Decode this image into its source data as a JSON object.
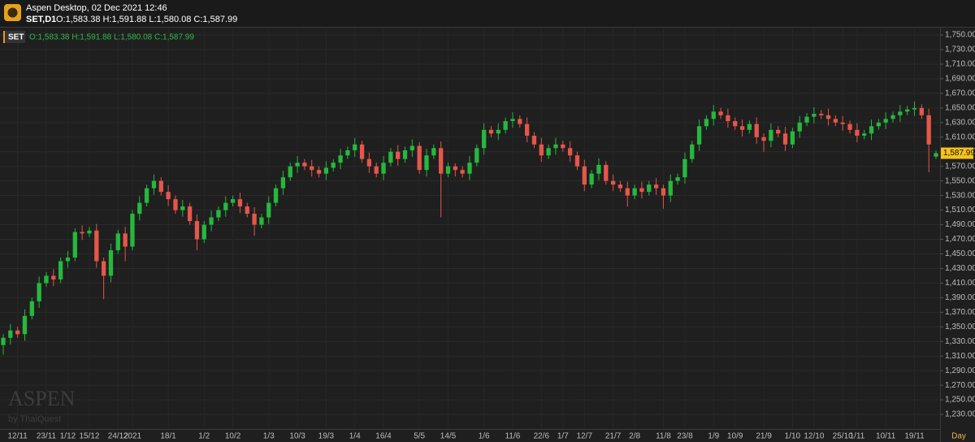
{
  "chart_data": {
    "type": "candlestick",
    "title": "Aspen Desktop, 02 Dec 2021 12:46",
    "symbol": "SET,D1",
    "ohlc_text": "O:1,583.38 H:1,591.88 L:1,580.08 C:1,587.99",
    "legend_name": "SET",
    "legend_text": "O:1,583.38 H:1,591.88 L:1,580.08 C:1,587.99",
    "last_price": {
      "value": 1587.99,
      "label": "1,587.99"
    },
    "x_unit": "Day",
    "watermark": "ASPEN",
    "watermark_sub": "by ThaiQuest",
    "up_color": "#26b83e",
    "down_color": "#e5564b",
    "grid": true,
    "ylim": [
      1210,
      1759
    ],
    "yticks": [
      {
        "value": 1230,
        "label": "1,230.00"
      },
      {
        "value": 1250,
        "label": "1,250.00"
      },
      {
        "value": 1270,
        "label": "1,270.00"
      },
      {
        "value": 1290,
        "label": "1,290.00"
      },
      {
        "value": 1310,
        "label": "1,310.00"
      },
      {
        "value": 1330,
        "label": "1,330.00"
      },
      {
        "value": 1350,
        "label": "1,350.00"
      },
      {
        "value": 1370,
        "label": "1,370.00"
      },
      {
        "value": 1390,
        "label": "1,390.00"
      },
      {
        "value": 1410,
        "label": "1,410.00"
      },
      {
        "value": 1430,
        "label": "1,430.00"
      },
      {
        "value": 1450,
        "label": "1,450.00"
      },
      {
        "value": 1470,
        "label": "1,470.00"
      },
      {
        "value": 1490,
        "label": "1,490.00"
      },
      {
        "value": 1510,
        "label": "1,510.00"
      },
      {
        "value": 1530,
        "label": "1,530.00"
      },
      {
        "value": 1550,
        "label": "1,550.00"
      },
      {
        "value": 1570,
        "label": "1,570.00"
      },
      {
        "value": 1590,
        "label": "1,590.00"
      },
      {
        "value": 1610,
        "label": "1,610.00"
      },
      {
        "value": 1630,
        "label": "1,630.00"
      },
      {
        "value": 1650,
        "label": "1,650.00"
      },
      {
        "value": 1670,
        "label": "1,670.00"
      },
      {
        "value": 1690,
        "label": "1,690.00"
      },
      {
        "value": 1710,
        "label": "1,710.00"
      },
      {
        "value": 1730,
        "label": "1,730.00"
      },
      {
        "value": 1750,
        "label": "1,750.00"
      }
    ],
    "categories": [
      null,
      null,
      "12/11",
      null,
      null,
      null,
      "23/11",
      null,
      null,
      "1/12",
      null,
      null,
      "15/12",
      null,
      null,
      null,
      "24/12",
      null,
      "2021",
      null,
      null,
      null,
      null,
      "18/1",
      null,
      null,
      null,
      null,
      "1/2",
      null,
      null,
      null,
      "10/2",
      null,
      null,
      null,
      null,
      "1/3",
      null,
      null,
      null,
      "10/3",
      null,
      null,
      null,
      "19/3",
      null,
      null,
      null,
      "1/4",
      null,
      null,
      null,
      "16/4",
      null,
      null,
      null,
      null,
      "5/5",
      null,
      null,
      null,
      "14/5",
      null,
      null,
      null,
      null,
      "1/6",
      null,
      null,
      null,
      "11/6",
      null,
      null,
      null,
      "22/6",
      null,
      null,
      "1/7",
      null,
      null,
      "12/7",
      null,
      null,
      null,
      "21/7",
      null,
      null,
      "2/8",
      null,
      null,
      null,
      "11/8",
      null,
      null,
      "23/8",
      null,
      null,
      null,
      "1/9",
      null,
      null,
      "10/9",
      null,
      null,
      null,
      "21/9",
      null,
      null,
      null,
      "1/10",
      null,
      null,
      "12/10",
      null,
      null,
      null,
      "25/10",
      null,
      "1/11",
      null,
      null,
      null,
      "10/11",
      null,
      null,
      null,
      "19/11",
      null,
      null,
      null
    ],
    "open": [
      1325,
      1335,
      1345,
      1340,
      1365,
      1385,
      1410,
      1420,
      1415,
      1440,
      1445,
      1480,
      1478,
      1482,
      1440,
      1420,
      1455,
      1478,
      1460,
      1505,
      1520,
      1540,
      1550,
      1535,
      1525,
      1510,
      1515,
      1495,
      1470,
      1490,
      1500,
      1510,
      1520,
      1525,
      1515,
      1505,
      1490,
      1500,
      1520,
      1540,
      1555,
      1570,
      1575,
      1570,
      1565,
      1560,
      1568,
      1575,
      1585,
      1592,
      1600,
      1580,
      1570,
      1560,
      1575,
      1590,
      1580,
      1592,
      1598,
      1565,
      1585,
      1595,
      1560,
      1570,
      1565,
      1560,
      1575,
      1595,
      1620,
      1615,
      1620,
      1632,
      1635,
      1628,
      1612,
      1600,
      1585,
      1595,
      1600,
      1595,
      1585,
      1570,
      1545,
      1560,
      1572,
      1550,
      1545,
      1540,
      1530,
      1540,
      1535,
      1545,
      1540,
      1530,
      1550,
      1555,
      1580,
      1600,
      1625,
      1635,
      1645,
      1640,
      1632,
      1625,
      1620,
      1628,
      1610,
      1605,
      1620,
      1615,
      1600,
      1618,
      1630,
      1638,
      1642,
      1640,
      1635,
      1630,
      1628,
      1620,
      1612,
      1615,
      1625,
      1630,
      1635,
      1640,
      1645,
      1648,
      1650,
      1640,
      1583.38
    ],
    "high": [
      1340,
      1354,
      1350,
      1374,
      1390,
      1419,
      1425,
      1429,
      1445,
      1454,
      1485,
      1489,
      1487,
      1491,
      1445,
      1464,
      1483,
      1487,
      1510,
      1529,
      1545,
      1559,
      1555,
      1544,
      1530,
      1524,
      1520,
      1504,
      1495,
      1509,
      1515,
      1529,
      1530,
      1534,
      1520,
      1514,
      1505,
      1529,
      1545,
      1564,
      1575,
      1584,
      1580,
      1579,
      1570,
      1577,
      1580,
      1594,
      1597,
      1609,
      1605,
      1589,
      1575,
      1584,
      1595,
      1599,
      1597,
      1607,
      1603,
      1594,
      1600,
      1604,
      1575,
      1574,
      1570,
      1584,
      1600,
      1629,
      1625,
      1629,
      1637,
      1644,
      1640,
      1637,
      1617,
      1609,
      1600,
      1609,
      1605,
      1604,
      1590,
      1579,
      1565,
      1581,
      1577,
      1559,
      1550,
      1549,
      1545,
      1549,
      1550,
      1554,
      1545,
      1559,
      1560,
      1589,
      1605,
      1634,
      1640,
      1654,
      1650,
      1649,
      1637,
      1634,
      1633,
      1637,
      1615,
      1629,
      1625,
      1624,
      1623,
      1639,
      1643,
      1651,
      1647,
      1649,
      1640,
      1639,
      1633,
      1629,
      1620,
      1634,
      1635,
      1644,
      1645,
      1654,
      1653,
      1659,
      1655,
      1649,
      1591.88
    ],
    "low": [
      1312,
      1326,
      1335,
      1331,
      1360,
      1376,
      1405,
      1406,
      1410,
      1431,
      1440,
      1469,
      1473,
      1431,
      1388,
      1411,
      1450,
      1440,
      1455,
      1496,
      1515,
      1531,
      1530,
      1516,
      1505,
      1501,
      1490,
      1455,
      1465,
      1481,
      1495,
      1501,
      1515,
      1506,
      1500,
      1475,
      1485,
      1491,
      1515,
      1531,
      1550,
      1561,
      1565,
      1556,
      1555,
      1551,
      1563,
      1566,
      1580,
      1583,
      1575,
      1561,
      1555,
      1551,
      1570,
      1571,
      1575,
      1583,
      1560,
      1556,
      1580,
      1500,
      1555,
      1556,
      1555,
      1551,
      1570,
      1586,
      1610,
      1606,
      1615,
      1623,
      1623,
      1603,
      1595,
      1576,
      1580,
      1586,
      1590,
      1576,
      1565,
      1536,
      1540,
      1551,
      1545,
      1536,
      1535,
      1515,
      1525,
      1526,
      1530,
      1531,
      1512,
      1521,
      1545,
      1546,
      1575,
      1591,
      1620,
      1626,
      1635,
      1623,
      1620,
      1611,
      1615,
      1601,
      1590,
      1596,
      1610,
      1591,
      1595,
      1609,
      1625,
      1629,
      1635,
      1626,
      1625,
      1619,
      1615,
      1603,
      1607,
      1606,
      1620,
      1621,
      1630,
      1631,
      1640,
      1639,
      1635,
      1562,
      1580.08
    ],
    "close": [
      1335,
      1345,
      1340,
      1365,
      1385,
      1410,
      1420,
      1415,
      1440,
      1445,
      1480,
      1478,
      1482,
      1440,
      1420,
      1455,
      1478,
      1460,
      1505,
      1520,
      1540,
      1550,
      1535,
      1525,
      1510,
      1515,
      1495,
      1470,
      1490,
      1500,
      1510,
      1520,
      1525,
      1515,
      1505,
      1490,
      1500,
      1520,
      1540,
      1555,
      1570,
      1575,
      1570,
      1565,
      1560,
      1568,
      1575,
      1585,
      1592,
      1600,
      1580,
      1570,
      1560,
      1575,
      1590,
      1580,
      1592,
      1598,
      1565,
      1585,
      1595,
      1560,
      1570,
      1565,
      1560,
      1575,
      1595,
      1620,
      1615,
      1620,
      1632,
      1635,
      1628,
      1612,
      1600,
      1585,
      1595,
      1600,
      1595,
      1585,
      1570,
      1545,
      1560,
      1572,
      1550,
      1545,
      1540,
      1530,
      1540,
      1535,
      1545,
      1540,
      1530,
      1550,
      1555,
      1580,
      1600,
      1625,
      1635,
      1645,
      1640,
      1632,
      1625,
      1620,
      1628,
      1610,
      1605,
      1620,
      1615,
      1600,
      1618,
      1630,
      1638,
      1642,
      1640,
      1635,
      1630,
      1628,
      1620,
      1612,
      1615,
      1625,
      1630,
      1635,
      1640,
      1645,
      1648,
      1650,
      1640,
      1600,
      1587.99
    ]
  }
}
